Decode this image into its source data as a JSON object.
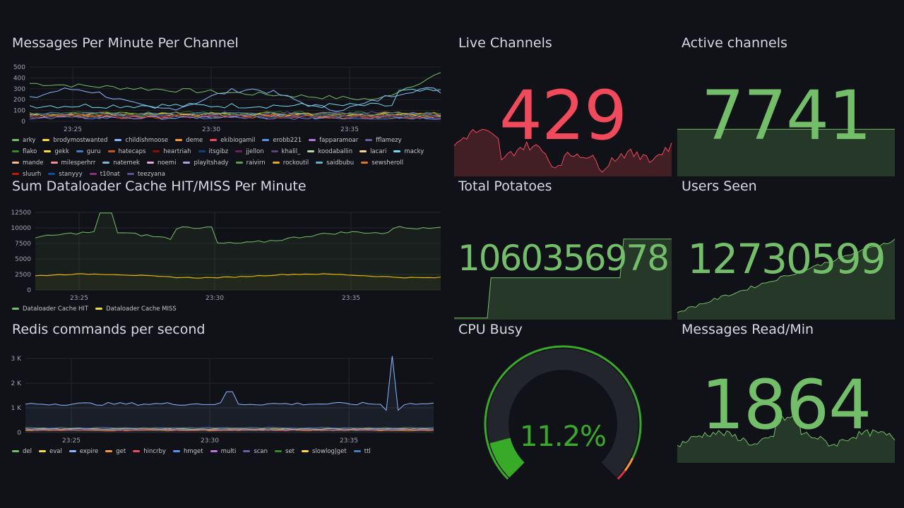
{
  "panels": {
    "messages_per_minute": {
      "title": "Messages Per Minute Per Channel",
      "y_ticks": [
        "500",
        "400",
        "300",
        "200",
        "100",
        "0"
      ],
      "x_ticks": [
        "23:25",
        "23:30",
        "23:35"
      ],
      "legend": [
        {
          "name": "arky",
          "color": "#73bf69"
        },
        {
          "name": "brodymostwanted",
          "color": "#fade2a"
        },
        {
          "name": "childishmoose",
          "color": "#8ab8ff"
        },
        {
          "name": "deme",
          "color": "#ff9830"
        },
        {
          "name": "ekibiogamil",
          "color": "#f2495c"
        },
        {
          "name": "erobb221",
          "color": "#5794f2"
        },
        {
          "name": "fapparamoar",
          "color": "#b877d9"
        },
        {
          "name": "fflamezy",
          "color": "#705da0"
        },
        {
          "name": "flako",
          "color": "#37872d"
        },
        {
          "name": "gekk",
          "color": "#fade2a"
        },
        {
          "name": "guru",
          "color": "#447ebc"
        },
        {
          "name": "hatecaps",
          "color": "#c15c17"
        },
        {
          "name": "heartriah",
          "color": "#890f02"
        },
        {
          "name": "itsgibz",
          "color": "#0a437c"
        },
        {
          "name": "jjellon",
          "color": "#6d1f62"
        },
        {
          "name": "khalil_",
          "color": "#584477"
        },
        {
          "name": "koodaballin",
          "color": "#b7dbab"
        },
        {
          "name": "lacari",
          "color": "#f4d598"
        },
        {
          "name": "macky",
          "color": "#70dbed"
        },
        {
          "name": "mande",
          "color": "#f9ba8f"
        },
        {
          "name": "milesperhrr",
          "color": "#f29191"
        },
        {
          "name": "natemek",
          "color": "#82b5d8"
        },
        {
          "name": "noemi",
          "color": "#e5a8e2"
        },
        {
          "name": "playltshady",
          "color": "#aea2e0"
        },
        {
          "name": "raivirn",
          "color": "#629e51"
        },
        {
          "name": "rockoutil",
          "color": "#e5ac0e"
        },
        {
          "name": "saidbubu",
          "color": "#64b0c8"
        },
        {
          "name": "sewsheroll",
          "color": "#e0752d"
        },
        {
          "name": "sluurh",
          "color": "#bf1b00"
        },
        {
          "name": "stanyyy",
          "color": "#0a50a1"
        },
        {
          "name": "t10nat",
          "color": "#962d82"
        },
        {
          "name": "teezyana",
          "color": "#614d93"
        }
      ]
    },
    "dataloader_cache": {
      "title": "Sum Dataloader Cache HIT/MISS Per Minute",
      "y_ticks": [
        "12500",
        "10000",
        "7500",
        "5000",
        "2500",
        "0"
      ],
      "x_ticks": [
        "23:25",
        "23:30",
        "23:35"
      ],
      "legend": [
        {
          "name": "Dataloader Cache HIT",
          "color": "#73bf69"
        },
        {
          "name": "Dataloader Cache MISS",
          "color": "#fade2a"
        }
      ]
    },
    "redis_commands": {
      "title": "Redis commands per second",
      "y_ticks": [
        "3 K",
        "2 K",
        "1 K",
        "0"
      ],
      "x_ticks": [
        "23:25",
        "23:30",
        "23:35"
      ],
      "legend": [
        {
          "name": "del",
          "color": "#73bf69"
        },
        {
          "name": "eval",
          "color": "#fade2a"
        },
        {
          "name": "expire",
          "color": "#8ab8ff"
        },
        {
          "name": "get",
          "color": "#ff9830"
        },
        {
          "name": "hincrby",
          "color": "#f2495c"
        },
        {
          "name": "hmget",
          "color": "#5794f2"
        },
        {
          "name": "multi",
          "color": "#b877d9"
        },
        {
          "name": "scan",
          "color": "#705da0"
        },
        {
          "name": "set",
          "color": "#37872d"
        },
        {
          "name": "slowlog|get",
          "color": "#fade2a"
        },
        {
          "name": "ttl",
          "color": "#447ebc"
        }
      ]
    },
    "live_channels": {
      "title": "Live Channels",
      "value": "429",
      "color": "#f2495c"
    },
    "active_channels": {
      "title": "Active channels",
      "value": "7741",
      "color": "#73bf69"
    },
    "total_potatoes": {
      "title": "Total Potatoes",
      "value": "1060356978",
      "color": "#73bf69"
    },
    "users_seen": {
      "title": "Users Seen",
      "value": "12730599",
      "color": "#73bf69"
    },
    "cpu_busy": {
      "title": "CPU Busy",
      "value": "11.2%",
      "gauge_level": 0.112,
      "color": "#37aa28"
    },
    "messages_read": {
      "title": "Messages Read/Min",
      "value": "1864",
      "color": "#73bf69"
    }
  }
}
